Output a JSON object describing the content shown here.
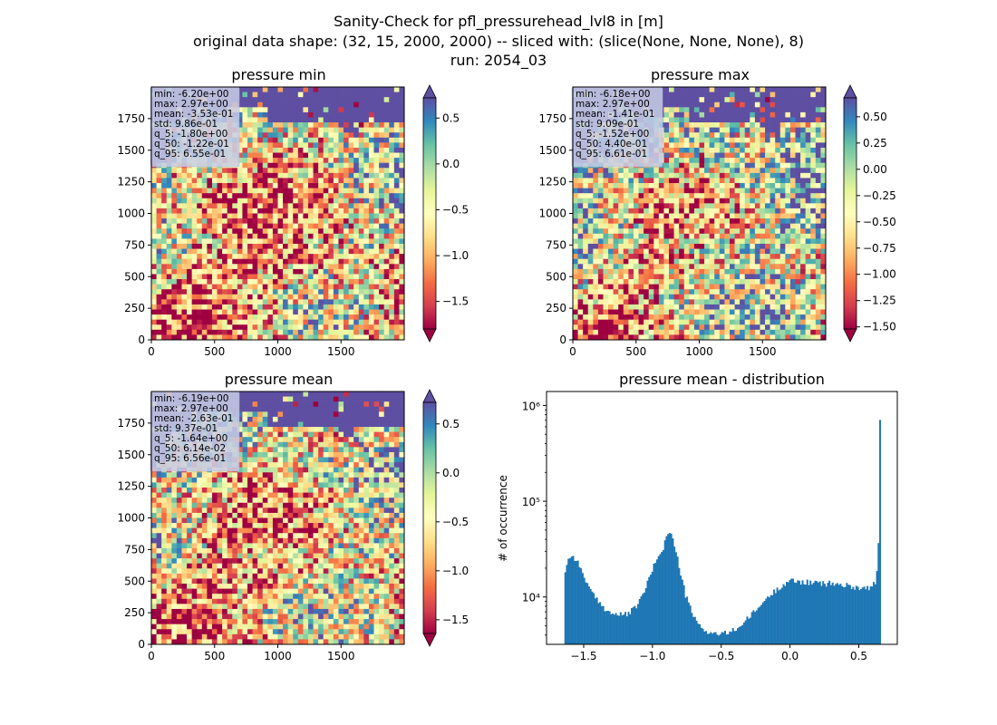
{
  "figure": {
    "suptitle_lines": [
      "Sanity-Check for pfl_pressurehead_lvl8 in [m]",
      "original data shape: (32, 15, 2000, 2000) -- sliced with: (slice(None, None, None), 8)",
      "run: 2054_03"
    ]
  },
  "colors": {
    "hist_bar": "#1f77b4",
    "ocean": "#5e4fa2",
    "stats_box_bg": "#c8cde6",
    "colormap": [
      "#9e0142",
      "#d53e4f",
      "#f46d43",
      "#fdae61",
      "#fee08b",
      "#ffffbf",
      "#e6f598",
      "#abdda4",
      "#66c2a5",
      "#3288bd",
      "#5e4fa2"
    ]
  },
  "chart_data": [
    {
      "type": "heatmap",
      "title": "pressure min",
      "x_ticks": [
        "0",
        "500",
        "1000",
        "1500"
      ],
      "y_ticks": [
        "0",
        "250",
        "500",
        "750",
        "1000",
        "1250",
        "1500",
        "1750"
      ],
      "xlim": [
        0,
        2000
      ],
      "ylim": [
        0,
        2000
      ],
      "colorbar": {
        "ticks": [
          "0.5",
          "0.0",
          "−0.5",
          "−1.0",
          "−1.5"
        ],
        "tick_values": [
          0.5,
          0.0,
          -0.5,
          -1.0,
          -1.5
        ],
        "range": [
          -1.8,
          0.72
        ]
      },
      "stats": [
        "min: -6.20e+00",
        "max: 2.97e+00",
        "mean: -3.53e-01",
        "std: 9.86e-01",
        "q_5: -1.80e+00",
        "q_50: -1.22e-01",
        "q_95: 6.55e-01"
      ]
    },
    {
      "type": "heatmap",
      "title": "pressure max",
      "x_ticks": [
        "0",
        "500",
        "1000",
        "1500"
      ],
      "y_ticks": [
        "0",
        "250",
        "500",
        "750",
        "1000",
        "1250",
        "1500",
        "1750"
      ],
      "xlim": [
        0,
        2000
      ],
      "ylim": [
        0,
        2000
      ],
      "colorbar": {
        "ticks": [
          "0.50",
          "0.25",
          "0.00",
          "−0.25",
          "−0.50",
          "−0.75",
          "−1.00",
          "−1.25",
          "−1.50"
        ],
        "tick_values": [
          0.5,
          0.25,
          0.0,
          -0.25,
          -0.5,
          -0.75,
          -1.0,
          -1.25,
          -1.5
        ],
        "range": [
          -1.52,
          0.68
        ]
      },
      "stats": [
        "min: -6.18e+00",
        "max: 2.97e+00",
        "mean: -1.41e-01",
        "std: 9.09e-01",
        "q_5: -1.52e+00",
        "q_50: 4.40e-01",
        "q_95: 6.61e-01"
      ]
    },
    {
      "type": "heatmap",
      "title": "pressure mean",
      "x_ticks": [
        "0",
        "500",
        "1000",
        "1500"
      ],
      "y_ticks": [
        "0",
        "250",
        "500",
        "750",
        "1000",
        "1250",
        "1500",
        "1750"
      ],
      "xlim": [
        0,
        2000
      ],
      "ylim": [
        0,
        2000
      ],
      "colorbar": {
        "ticks": [
          "0.5",
          "0.0",
          "−0.5",
          "−1.0",
          "−1.5"
        ],
        "tick_values": [
          0.5,
          0.0,
          -0.5,
          -1.0,
          -1.5
        ],
        "range": [
          -1.64,
          0.72
        ]
      },
      "stats": [
        "min: -6.19e+00",
        "max: 2.97e+00",
        "mean: -2.63e-01",
        "std: 9.37e-01",
        "q_5: -1.64e+00",
        "q_50: 6.14e-02",
        "q_95: 6.56e-01"
      ]
    },
    {
      "type": "bar",
      "title": "pressure mean - distribution",
      "ylabel": "# of occurrence",
      "log_y": true,
      "x_ticks": [
        "−1.5",
        "−1.0",
        "−0.5",
        "0.0",
        "0.5"
      ],
      "x_tick_values": [
        -1.5,
        -1.0,
        -0.5,
        0.0,
        0.5
      ],
      "y_ticks": [
        "10⁴",
        "10⁵",
        "10⁶"
      ],
      "y_tick_values": [
        10000,
        100000,
        1000000
      ],
      "xlim": [
        -1.77,
        0.78
      ],
      "ylim": [
        3200,
        1400000
      ],
      "bin_range": [
        -1.64,
        0.66
      ],
      "bin_count": 200,
      "profile_x": [
        -1.64,
        -1.63,
        -1.61,
        -1.59,
        -1.57,
        -1.55,
        -1.53,
        -1.51,
        -1.48,
        -1.45,
        -1.41,
        -1.37,
        -1.33,
        -1.29,
        -1.25,
        -1.21,
        -1.17,
        -1.13,
        -1.09,
        -1.05,
        -1.01,
        -0.97,
        -0.94,
        -0.92,
        -0.9,
        -0.88,
        -0.87,
        -0.86,
        -0.85,
        -0.84,
        -0.82,
        -0.8,
        -0.78,
        -0.76,
        -0.73,
        -0.7,
        -0.67,
        -0.64,
        -0.61,
        -0.58,
        -0.55,
        -0.52,
        -0.49,
        -0.46,
        -0.43,
        -0.4,
        -0.37,
        -0.34,
        -0.31,
        -0.28,
        -0.25,
        -0.22,
        -0.19,
        -0.16,
        -0.13,
        -0.1,
        -0.07,
        -0.04,
        -0.01,
        0.02,
        0.05,
        0.08,
        0.11,
        0.15,
        0.2,
        0.25,
        0.3,
        0.35,
        0.4,
        0.45,
        0.5,
        0.55,
        0.58,
        0.6,
        0.62,
        0.63,
        0.64,
        0.645,
        0.65,
        0.655,
        0.66
      ],
      "profile_y": [
        16000,
        21000,
        25000,
        27000,
        26000,
        24000,
        21000,
        18000,
        14500,
        11500,
        9500,
        8200,
        7200,
        6700,
        6500,
        6500,
        6800,
        7600,
        9200,
        12500,
        17500,
        25000,
        30000,
        33000,
        42000,
        48000,
        49000,
        44000,
        38000,
        33000,
        26000,
        19000,
        14000,
        10500,
        8000,
        6200,
        5200,
        4700,
        4400,
        4250,
        4150,
        4100,
        4100,
        4200,
        4350,
        4600,
        4900,
        5300,
        5900,
        6500,
        7200,
        8000,
        9000,
        9900,
        10800,
        11800,
        12900,
        13800,
        14500,
        14800,
        14600,
        14400,
        14300,
        14100,
        14000,
        13700,
        13900,
        13500,
        13200,
        12900,
        12600,
        12400,
        12600,
        12900,
        14500,
        17000,
        26000,
        45000,
        180000,
        900000,
        180000
      ]
    }
  ]
}
